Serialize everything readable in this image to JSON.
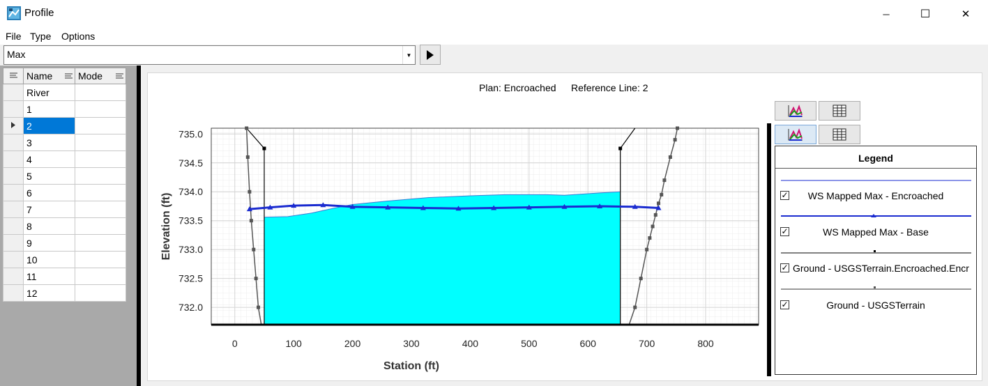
{
  "window": {
    "title": "Profile",
    "minimize_glyph": "─",
    "maximize_glyph": "☐",
    "close_glyph": "✕"
  },
  "menu": [
    "File",
    "Type",
    "Options"
  ],
  "toolbar": {
    "profile_value": "Max",
    "run_icon": "play-icon"
  },
  "grid": {
    "headers": [
      "Name",
      "Mode"
    ],
    "rows": [
      "River",
      "1",
      "2",
      "3",
      "4",
      "5",
      "6",
      "7",
      "8",
      "9",
      "10",
      "11",
      "12"
    ],
    "selected_row": "2"
  },
  "plot": {
    "plan_caption": "Plan: Encroached",
    "refline_caption": "Reference Line: 2"
  },
  "legend": {
    "title": "Legend",
    "items": [
      {
        "label": "WS Mapped Max - Encroached",
        "color": "#1a2bd0",
        "checked": true
      },
      {
        "label": "WS Mapped Max - Base",
        "color": "#1a2bd0",
        "checked": true
      },
      {
        "label": "Ground - USGSTerrain.Encroached.Encr",
        "color": "#000000",
        "checked": true
      },
      {
        "label": "Ground - USGSTerrain",
        "color": "#555555",
        "checked": true
      }
    ]
  },
  "colors": {
    "water_fill": "#00ffff",
    "water_outline": "#3a7bd5",
    "ws_base": "#1a2bd0",
    "ground": "#555555",
    "encroachment": "#000000",
    "selection": "#0078d7"
  },
  "chart_data": {
    "type": "line",
    "xlabel": "Station (ft)",
    "ylabel": "Elevation (ft)",
    "xlim": [
      -40,
      890
    ],
    "ylim": [
      731.7,
      735.1
    ],
    "x_ticks": [
      "0",
      "100",
      "200",
      "300",
      "400",
      "500",
      "600",
      "700",
      "800"
    ],
    "y_ticks": [
      "735.0",
      "734.5",
      "734.0",
      "733.5",
      "733.0",
      "732.5",
      "732.0"
    ],
    "grid": true,
    "series": [
      {
        "name": "WS Mapped Max - Encroached",
        "x": [
          50,
          90,
          130,
          170,
          200,
          260,
          330,
          400,
          460,
          530,
          560,
          620,
          655
        ],
        "y": [
          733.56,
          733.57,
          733.63,
          733.72,
          733.78,
          733.84,
          733.9,
          733.93,
          733.95,
          733.95,
          733.94,
          733.98,
          734.0
        ]
      },
      {
        "name": "WS Mapped Max - Base",
        "x": [
          25,
          60,
          100,
          150,
          200,
          260,
          320,
          380,
          440,
          500,
          560,
          620,
          680,
          720
        ],
        "y": [
          733.7,
          733.73,
          733.76,
          733.77,
          733.74,
          733.73,
          733.72,
          733.71,
          733.72,
          733.73,
          733.74,
          733.75,
          733.74,
          733.72
        ]
      },
      {
        "name": "Ground - USGSTerrain.Encroached.Encr",
        "x": [
          20,
          50,
          50,
          655,
          655,
          680
        ],
        "y": [
          735.1,
          734.75,
          731.7,
          731.7,
          734.75,
          735.1
        ]
      },
      {
        "name": "Ground - USGSTerrain",
        "x": [
          20,
          22,
          25,
          28,
          32,
          36,
          40,
          45,
          670,
          680,
          690,
          700,
          705,
          710,
          715,
          720,
          725,
          730,
          740,
          748,
          752
        ],
        "y": [
          735.1,
          734.6,
          734.0,
          733.5,
          733.0,
          732.5,
          732.0,
          731.7,
          731.7,
          732.0,
          732.5,
          733.0,
          733.2,
          733.4,
          733.6,
          733.8,
          733.95,
          734.2,
          734.6,
          734.9,
          735.1
        ]
      }
    ]
  }
}
